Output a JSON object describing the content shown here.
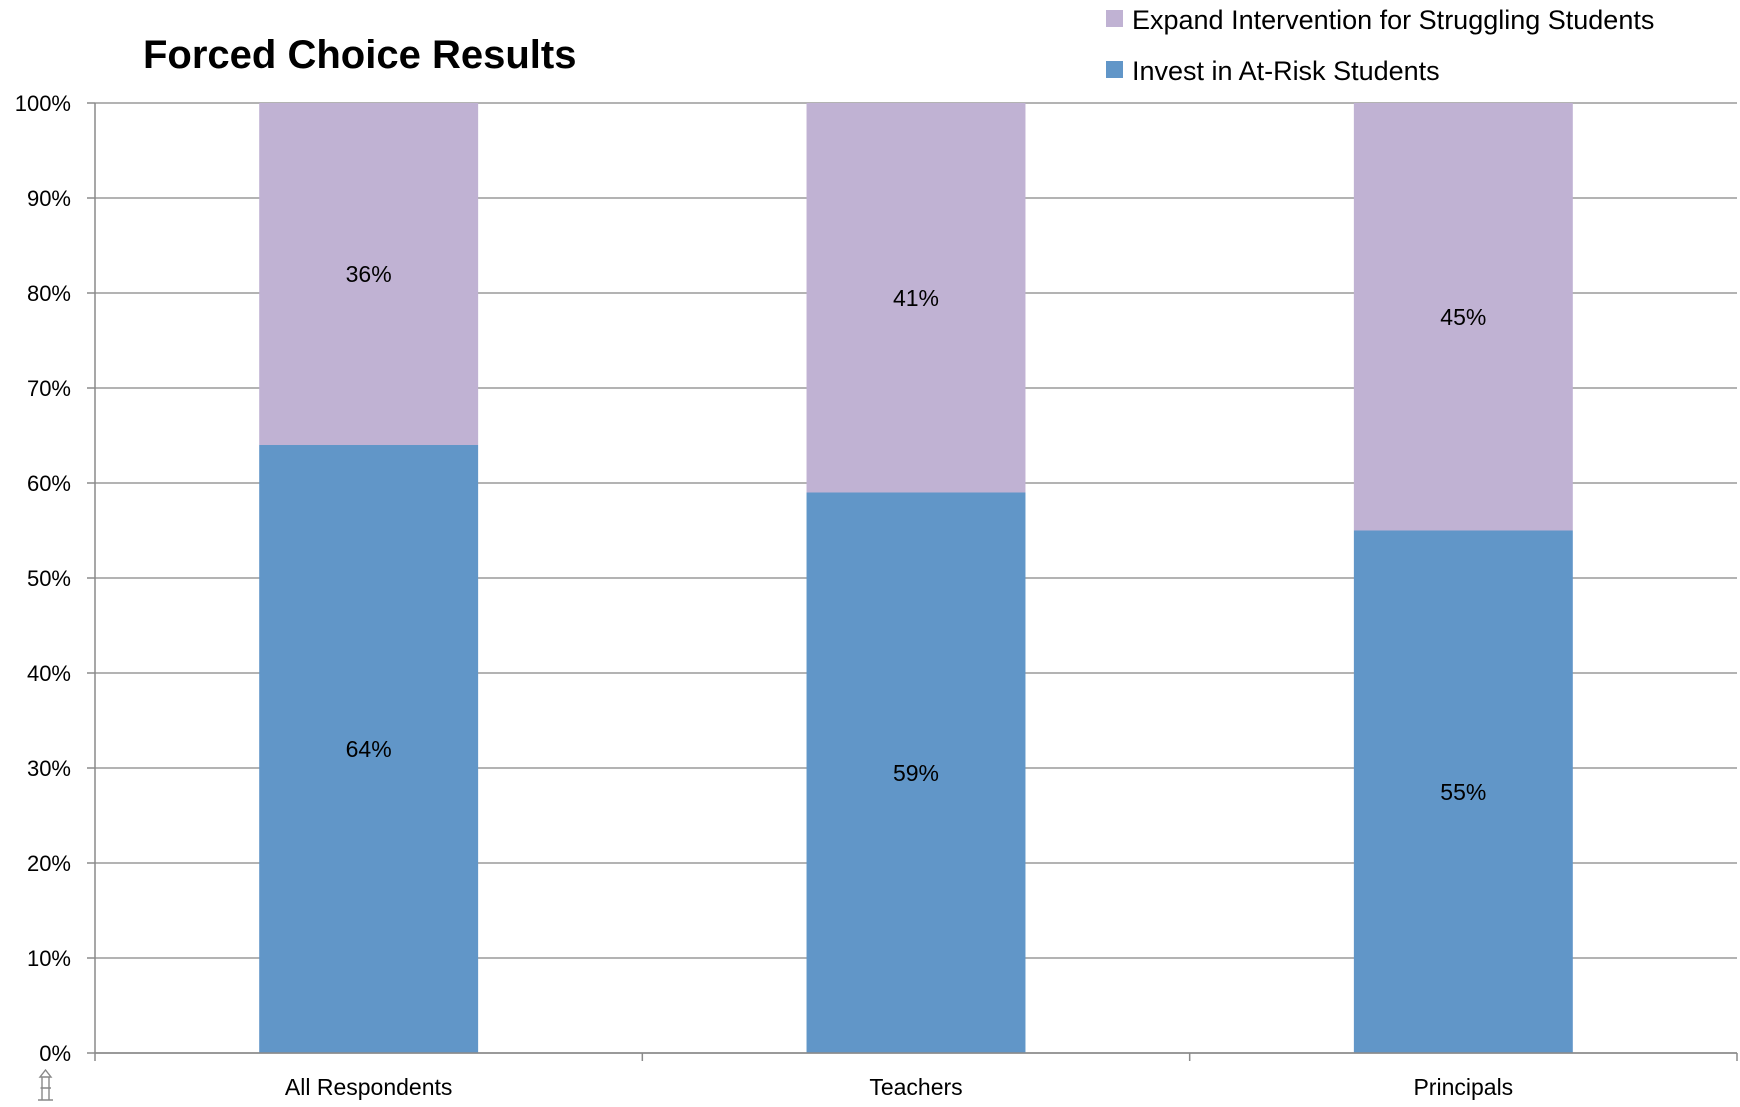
{
  "chart_data": {
    "type": "bar",
    "stacked": true,
    "title": "Forced Choice Results",
    "xlabel": "",
    "ylabel": "",
    "categories": [
      "All Respondents",
      "Teachers",
      "Principals"
    ],
    "series": [
      {
        "name": "Invest in At-Risk Students",
        "values": [
          64,
          59,
          55
        ],
        "labels": [
          "64%",
          "59%",
          "55%"
        ],
        "color": "#6196c8"
      },
      {
        "name": "Expand Intervention for Struggling Students",
        "values": [
          36,
          41,
          45
        ],
        "labels": [
          "36%",
          "41%",
          "45%"
        ],
        "color": "#c0b2d3"
      }
    ],
    "ylim": [
      0,
      100
    ],
    "yticks": [
      0,
      10,
      20,
      30,
      40,
      50,
      60,
      70,
      80,
      90,
      100
    ],
    "ytick_labels": [
      "0%",
      "10%",
      "20%",
      "30%",
      "40%",
      "50%",
      "60%",
      "70%",
      "80%",
      "90%",
      "100%"
    ],
    "grid": true,
    "legend_position": "top-right",
    "legend_order": [
      "Expand Intervention for Struggling Students",
      "Invest in At-Risk Students"
    ]
  }
}
